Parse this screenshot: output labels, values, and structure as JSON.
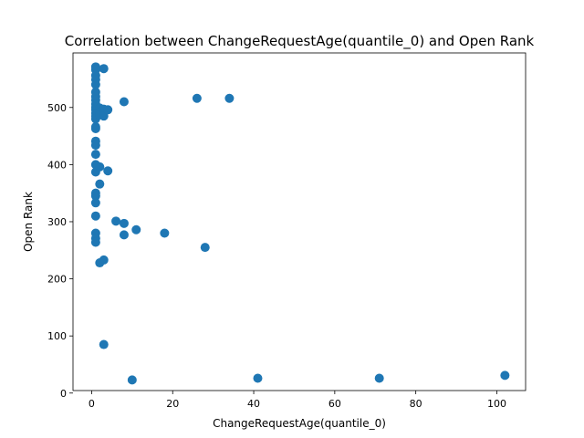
{
  "chart_data": {
    "type": "scatter",
    "title": "Correlation between ChangeRequestAge(quantile_0) and Open Rank",
    "xlabel": "ChangeRequestAge(quantile_0)",
    "ylabel": "Open Rank",
    "xlim": [
      -4.6,
      107.1
    ],
    "ylim": [
      4.4,
      595.5
    ],
    "xticks": [
      0,
      20,
      40,
      60,
      80,
      100
    ],
    "yticks": [
      0,
      100,
      200,
      300,
      400,
      500
    ],
    "grid": false,
    "legend": "none",
    "point_color": "#1f77b4",
    "points": [
      [
        1,
        571
      ],
      [
        1,
        566
      ],
      [
        3,
        568
      ],
      [
        1,
        556
      ],
      [
        1,
        549
      ],
      [
        1,
        540
      ],
      [
        1,
        527
      ],
      [
        1,
        519
      ],
      [
        1,
        513
      ],
      [
        1,
        506
      ],
      [
        1,
        500
      ],
      [
        1,
        496
      ],
      [
        1,
        490
      ],
      [
        1,
        485
      ],
      [
        1,
        480
      ],
      [
        2,
        499
      ],
      [
        2,
        492
      ],
      [
        2,
        487
      ],
      [
        3,
        497
      ],
      [
        3,
        491
      ],
      [
        3,
        485
      ],
      [
        4,
        496
      ],
      [
        8,
        510
      ],
      [
        26,
        516
      ],
      [
        34,
        516
      ],
      [
        1,
        466
      ],
      [
        1,
        463
      ],
      [
        1,
        441
      ],
      [
        1,
        434
      ],
      [
        1,
        418
      ],
      [
        1,
        400
      ],
      [
        1,
        387
      ],
      [
        2,
        396
      ],
      [
        4,
        389
      ],
      [
        2,
        366
      ],
      [
        1,
        350
      ],
      [
        1,
        345
      ],
      [
        1,
        333
      ],
      [
        1,
        310
      ],
      [
        6,
        301
      ],
      [
        8,
        297
      ],
      [
        11,
        286
      ],
      [
        1,
        280
      ],
      [
        8,
        277
      ],
      [
        18,
        280
      ],
      [
        1,
        271
      ],
      [
        1,
        264
      ],
      [
        28,
        255
      ],
      [
        3,
        233
      ],
      [
        2,
        228
      ],
      [
        3,
        85
      ],
      [
        10,
        23
      ],
      [
        41,
        26
      ],
      [
        71,
        26
      ],
      [
        102,
        31
      ]
    ]
  }
}
